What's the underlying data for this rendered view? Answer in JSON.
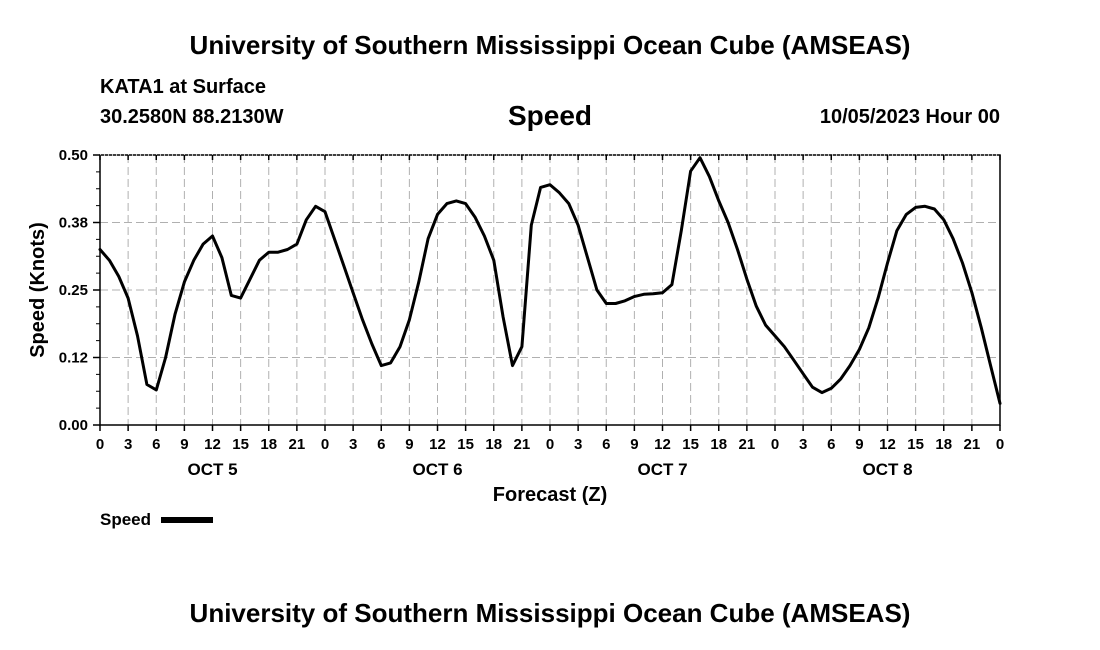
{
  "header": {
    "title": "University of Southern Mississippi Ocean Cube (AMSEAS)",
    "station": "KATA1 at Surface",
    "coordinates": "30.2580N  88.2130W",
    "variable": "Speed",
    "run_time": "10/05/2023 Hour 00"
  },
  "footer": {
    "title": "University of Southern Mississippi Ocean Cube (AMSEAS)"
  },
  "chart_data": {
    "type": "line",
    "title": "Speed",
    "xlabel": "Forecast (Z)",
    "ylabel": "Speed (Knots)",
    "ylim": [
      0,
      0.5
    ],
    "xlim": [
      0,
      96
    ],
    "grid": true,
    "legend_position": "bottom-left",
    "yticks": [
      {
        "value": 0.0,
        "label": "0.00"
      },
      {
        "value": 0.125,
        "label": "0.12"
      },
      {
        "value": 0.25,
        "label": "0.25"
      },
      {
        "value": 0.375,
        "label": "0.38"
      },
      {
        "value": 0.5,
        "label": "0.50"
      }
    ],
    "xticks": [
      {
        "hour": 0,
        "label": "0"
      },
      {
        "hour": 3,
        "label": "3"
      },
      {
        "hour": 6,
        "label": "6"
      },
      {
        "hour": 9,
        "label": "9"
      },
      {
        "hour": 12,
        "label": "12"
      },
      {
        "hour": 15,
        "label": "15"
      },
      {
        "hour": 18,
        "label": "18"
      },
      {
        "hour": 21,
        "label": "21"
      },
      {
        "hour": 24,
        "label": "0"
      },
      {
        "hour": 27,
        "label": "3"
      },
      {
        "hour": 30,
        "label": "6"
      },
      {
        "hour": 33,
        "label": "9"
      },
      {
        "hour": 36,
        "label": "12"
      },
      {
        "hour": 39,
        "label": "15"
      },
      {
        "hour": 42,
        "label": "18"
      },
      {
        "hour": 45,
        "label": "21"
      },
      {
        "hour": 48,
        "label": "0"
      },
      {
        "hour": 51,
        "label": "3"
      },
      {
        "hour": 54,
        "label": "6"
      },
      {
        "hour": 57,
        "label": "9"
      },
      {
        "hour": 60,
        "label": "12"
      },
      {
        "hour": 63,
        "label": "15"
      },
      {
        "hour": 66,
        "label": "18"
      },
      {
        "hour": 69,
        "label": "21"
      },
      {
        "hour": 72,
        "label": "0"
      },
      {
        "hour": 75,
        "label": "3"
      },
      {
        "hour": 78,
        "label": "6"
      },
      {
        "hour": 81,
        "label": "9"
      },
      {
        "hour": 84,
        "label": "12"
      },
      {
        "hour": 87,
        "label": "15"
      },
      {
        "hour": 90,
        "label": "18"
      },
      {
        "hour": 93,
        "label": "21"
      },
      {
        "hour": 96,
        "label": "0"
      }
    ],
    "day_labels": [
      {
        "hour": 12,
        "label": "OCT 5"
      },
      {
        "hour": 36,
        "label": "OCT 6"
      },
      {
        "hour": 60,
        "label": "OCT 7"
      },
      {
        "hour": 84,
        "label": "OCT 8"
      }
    ],
    "series": [
      {
        "name": "Speed",
        "color": "#000000",
        "points": [
          [
            0,
            0.325
          ],
          [
            1,
            0.305
          ],
          [
            2,
            0.275
          ],
          [
            3,
            0.235
          ],
          [
            4,
            0.165
          ],
          [
            5,
            0.075
          ],
          [
            6,
            0.065
          ],
          [
            7,
            0.125
          ],
          [
            8,
            0.205
          ],
          [
            9,
            0.265
          ],
          [
            10,
            0.305
          ],
          [
            11,
            0.335
          ],
          [
            12,
            0.35
          ],
          [
            13,
            0.31
          ],
          [
            14,
            0.24
          ],
          [
            15,
            0.235
          ],
          [
            16,
            0.27
          ],
          [
            17,
            0.305
          ],
          [
            18,
            0.32
          ],
          [
            19,
            0.32
          ],
          [
            20,
            0.325
          ],
          [
            21,
            0.335
          ],
          [
            22,
            0.38
          ],
          [
            23,
            0.405
          ],
          [
            24,
            0.395
          ],
          [
            25,
            0.345
          ],
          [
            26,
            0.295
          ],
          [
            27,
            0.245
          ],
          [
            28,
            0.195
          ],
          [
            29,
            0.15
          ],
          [
            30,
            0.11
          ],
          [
            31,
            0.115
          ],
          [
            32,
            0.145
          ],
          [
            33,
            0.195
          ],
          [
            34,
            0.265
          ],
          [
            35,
            0.345
          ],
          [
            36,
            0.39
          ],
          [
            37,
            0.41
          ],
          [
            38,
            0.415
          ],
          [
            39,
            0.41
          ],
          [
            40,
            0.385
          ],
          [
            41,
            0.35
          ],
          [
            42,
            0.305
          ],
          [
            43,
            0.2
          ],
          [
            44,
            0.11
          ],
          [
            45,
            0.145
          ],
          [
            46,
            0.37
          ],
          [
            47,
            0.44
          ],
          [
            48,
            0.445
          ],
          [
            49,
            0.43
          ],
          [
            50,
            0.41
          ],
          [
            51,
            0.37
          ],
          [
            52,
            0.31
          ],
          [
            53,
            0.25
          ],
          [
            54,
            0.225
          ],
          [
            55,
            0.225
          ],
          [
            56,
            0.23
          ],
          [
            57,
            0.238
          ],
          [
            58,
            0.242
          ],
          [
            59,
            0.243
          ],
          [
            60,
            0.245
          ],
          [
            61,
            0.26
          ],
          [
            62,
            0.36
          ],
          [
            63,
            0.47
          ],
          [
            64,
            0.495
          ],
          [
            65,
            0.46
          ],
          [
            66,
            0.415
          ],
          [
            67,
            0.375
          ],
          [
            68,
            0.325
          ],
          [
            69,
            0.27
          ],
          [
            70,
            0.22
          ],
          [
            71,
            0.185
          ],
          [
            72,
            0.165
          ],
          [
            73,
            0.145
          ],
          [
            74,
            0.12
          ],
          [
            75,
            0.095
          ],
          [
            76,
            0.07
          ],
          [
            77,
            0.06
          ],
          [
            78,
            0.068
          ],
          [
            79,
            0.085
          ],
          [
            80,
            0.11
          ],
          [
            81,
            0.14
          ],
          [
            82,
            0.18
          ],
          [
            83,
            0.235
          ],
          [
            84,
            0.3
          ],
          [
            85,
            0.36
          ],
          [
            86,
            0.39
          ],
          [
            87,
            0.403
          ],
          [
            88,
            0.405
          ],
          [
            89,
            0.4
          ],
          [
            90,
            0.38
          ],
          [
            91,
            0.345
          ],
          [
            92,
            0.3
          ],
          [
            93,
            0.245
          ],
          [
            94,
            0.18
          ],
          [
            95,
            0.11
          ],
          [
            96,
            0.04
          ]
        ]
      }
    ]
  }
}
